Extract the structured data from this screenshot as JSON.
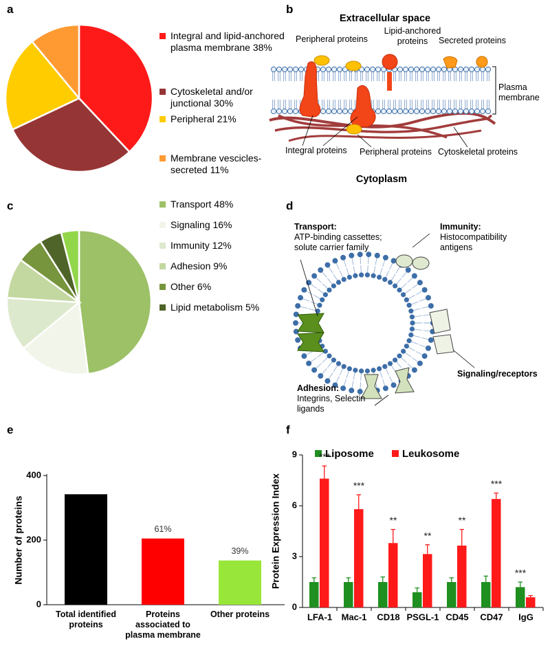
{
  "chart_data": [
    {
      "type": "pie",
      "label": "a",
      "categories": [
        "Integral and lipid-anchored plasma membrane 38%",
        "Cytoskeletal and/or junctional 30%",
        "Peripheral  21%",
        "Membrane vescicles-secreted 11%"
      ],
      "values": [
        38,
        30,
        21,
        11
      ],
      "colors": [
        "#ff1a1a",
        "#963535",
        "#ffcc00",
        "#ff9a33"
      ]
    },
    {
      "type": "pie",
      "label": "c",
      "categories": [
        "Transport 48%",
        "Signaling 16%",
        "Immunity 12%",
        "Adhesion 9%",
        "Other 6%",
        "Lipid metabolism 5%",
        null
      ],
      "values": [
        48,
        16,
        12,
        9,
        6,
        5,
        4
      ],
      "colors": [
        "#9cc167",
        "#f1f5ea",
        "#dde9cc",
        "#c3d8a0",
        "#77953c",
        "#4f6428",
        "#92d64a"
      ]
    },
    {
      "type": "bar",
      "label": "e",
      "ylabel": "Number of proteins",
      "categories": [
        "Total identified proteins",
        "Proteins associated to plasma membrane",
        "Other proteins"
      ],
      "values": [
        342,
        205,
        137
      ],
      "colors": [
        "#000000",
        "#ff0000",
        "#99e63a"
      ],
      "annotations": [
        null,
        "61%",
        "39%"
      ],
      "ylim": [
        0,
        400
      ],
      "yticks": [
        0,
        200,
        400
      ]
    },
    {
      "type": "grouped_bar",
      "label": "f",
      "ylabel": "Protein Expression Index",
      "categories": [
        "LFA-1",
        "Mac-1",
        "CD18",
        "PSGL-1",
        "CD45",
        "CD47",
        "IgG"
      ],
      "series": [
        {
          "name": "Liposome",
          "color": "#1f8f1f",
          "values": [
            1.5,
            1.5,
            1.5,
            0.9,
            1.5,
            1.5,
            1.2
          ],
          "errors": [
            0.25,
            0.25,
            0.3,
            0.25,
            0.25,
            0.35,
            0.3
          ]
        },
        {
          "name": "Leukosome",
          "color": "#ff1a1a",
          "values": [
            7.6,
            5.8,
            3.8,
            3.15,
            3.65,
            6.4,
            0.6
          ],
          "errors": [
            0.75,
            0.85,
            0.8,
            0.55,
            0.95,
            0.35,
            0.1
          ]
        }
      ],
      "annotations": [
        "***",
        "***",
        "**",
        "**",
        "**",
        "***",
        "***"
      ],
      "ylim": [
        0,
        9
      ],
      "yticks": [
        0,
        3,
        6,
        9
      ],
      "legend": "top"
    }
  ],
  "diagrams": [
    {
      "label": "b",
      "texts": [
        "Extracellular space",
        "Peripheral proteins",
        "Lipid-anchored proteins",
        "Secreted proteins",
        "Plasma membrane",
        "Integral proteins",
        "Peripheral proteins",
        "Cytoskeletal proteins",
        "Cytoplasm"
      ]
    },
    {
      "label": "d",
      "texts": [
        "Transport:",
        "ATP-binding cassettes; solute carrier family",
        "Immunity:",
        "Histocompatibility antigens",
        "Signaling/receptors",
        "Adhesion:",
        "Integrins, Selectin ligands"
      ]
    }
  ]
}
